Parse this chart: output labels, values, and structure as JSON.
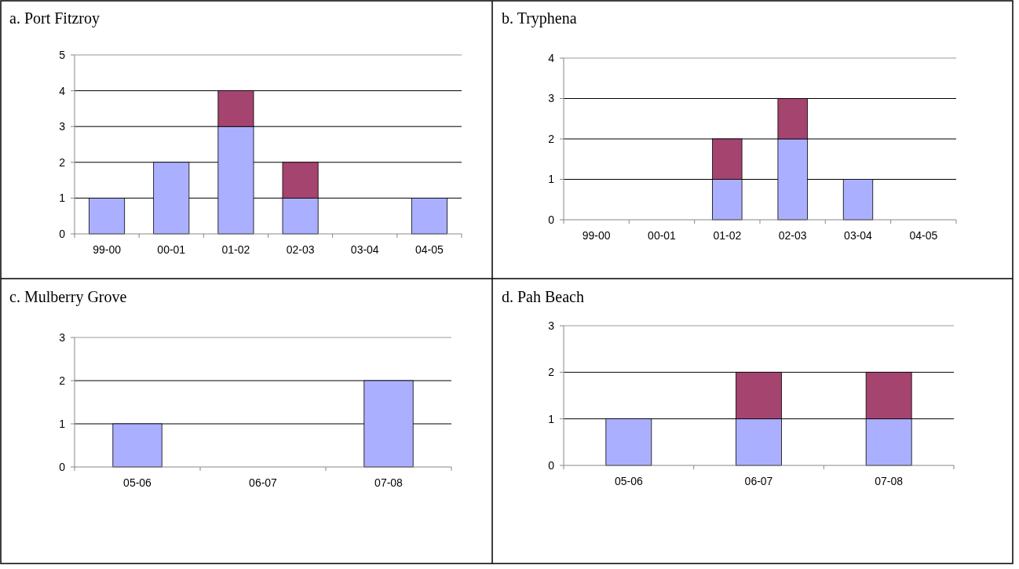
{
  "chart_data": [
    {
      "type": "bar",
      "title": "a. Port Fitzroy",
      "categories": [
        "99-00",
        "00-01",
        "01-02",
        "02-03",
        "03-04",
        "04-05"
      ],
      "stacked": true,
      "ylim": [
        0,
        5
      ],
      "yticks": [
        0,
        1,
        2,
        3,
        4,
        5
      ],
      "grid": "y",
      "series": [
        {
          "color": "#aab0ff",
          "values": [
            1,
            2,
            3,
            1,
            null,
            1
          ]
        },
        {
          "color": "#a5446e",
          "values": [
            null,
            null,
            1,
            1,
            null,
            null
          ]
        }
      ]
    },
    {
      "type": "bar",
      "title": "b. Tryphena",
      "categories": [
        "99-00",
        "00-01",
        "01-02",
        "02-03",
        "03-04",
        "04-05"
      ],
      "stacked": true,
      "ylim": [
        0,
        4
      ],
      "yticks": [
        0,
        1,
        2,
        3,
        4
      ],
      "grid": "y",
      "series": [
        {
          "color": "#aab0ff",
          "values": [
            null,
            null,
            1,
            2,
            1,
            null
          ]
        },
        {
          "color": "#a5446e",
          "values": [
            null,
            null,
            1,
            1,
            null,
            null
          ]
        }
      ]
    },
    {
      "type": "bar",
      "title": "c. Mulberry Grove",
      "categories": [
        "05-06",
        "06-07",
        "07-08"
      ],
      "stacked": true,
      "ylim": [
        0,
        3
      ],
      "yticks": [
        0,
        1,
        2,
        3
      ],
      "grid": "y",
      "series": [
        {
          "color": "#aab0ff",
          "values": [
            1,
            null,
            2
          ]
        }
      ]
    },
    {
      "type": "bar",
      "title": "d. Pah Beach",
      "categories": [
        "05-06",
        "06-07",
        "07-08"
      ],
      "stacked": true,
      "ylim": [
        0,
        3
      ],
      "yticks": [
        0,
        1,
        2,
        3
      ],
      "grid": "y",
      "series": [
        {
          "color": "#aab0ff",
          "values": [
            1,
            1,
            1
          ]
        },
        {
          "color": "#a5446e",
          "values": [
            null,
            1,
            1
          ]
        }
      ]
    }
  ]
}
